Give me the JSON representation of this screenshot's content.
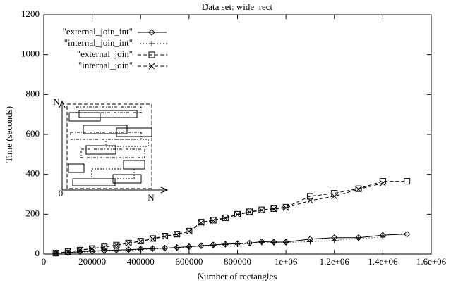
{
  "chart_data": {
    "type": "line",
    "title": "Data set: wide_rect",
    "x_label": "Number of rectangles",
    "y_label": "Time (seconds)",
    "xlim": [
      0,
      1600000
    ],
    "ylim": [
      0,
      1200
    ],
    "xticks": [
      0,
      200000,
      400000,
      600000,
      800000,
      {
        "value": 1000000,
        "label": "1e+06"
      },
      {
        "value": 1200000,
        "label": "1.2e+06"
      },
      {
        "value": 1400000,
        "label": "1.4e+06"
      },
      {
        "value": 1600000,
        "label": "1.6e+06"
      }
    ],
    "yticks": [
      0,
      200,
      400,
      600,
      800,
      1000,
      1200
    ],
    "legend": "top-left",
    "series": [
      {
        "name": "\"external_join_int\"",
        "color": "#000000",
        "marker": "diamond",
        "dash": "solid",
        "x": [
          50000,
          100000,
          150000,
          200000,
          250000,
          300000,
          350000,
          400000,
          450000,
          500000,
          550000,
          600000,
          650000,
          700000,
          750000,
          800000,
          850000,
          900000,
          950000,
          1000000,
          1100000,
          1200000,
          1300000,
          1400000,
          1500000
        ],
        "values": [
          3,
          8,
          12,
          15,
          18,
          20,
          22,
          25,
          28,
          30,
          33,
          37,
          42,
          46,
          50,
          52,
          55,
          62,
          60,
          60,
          75,
          82,
          82,
          95,
          100
        ]
      },
      {
        "name": "\"internal_join_int\"",
        "color": "#000000",
        "marker": "plus",
        "dash": "dotted",
        "x": [
          50000,
          100000,
          150000,
          200000,
          250000,
          300000,
          350000,
          400000,
          450000,
          500000,
          550000,
          600000,
          650000,
          700000,
          750000,
          800000,
          850000,
          900000,
          950000,
          1000000,
          1100000,
          1200000,
          1300000,
          1400000
        ],
        "values": [
          2,
          6,
          10,
          13,
          16,
          18,
          20,
          23,
          26,
          28,
          31,
          35,
          40,
          44,
          47,
          50,
          53,
          58,
          57,
          58,
          62,
          68,
          78,
          85
        ]
      },
      {
        "name": "\"external_join\"",
        "color": "#000000",
        "marker": "square",
        "dash": "dashed",
        "x": [
          50000,
          100000,
          150000,
          200000,
          250000,
          300000,
          350000,
          400000,
          450000,
          500000,
          550000,
          600000,
          650000,
          700000,
          750000,
          800000,
          850000,
          900000,
          950000,
          1000000,
          1100000,
          1200000,
          1300000,
          1400000,
          1500000
        ],
        "values": [
          5,
          12,
          20,
          28,
          36,
          45,
          55,
          65,
          78,
          90,
          100,
          115,
          160,
          170,
          182,
          200,
          212,
          222,
          228,
          235,
          290,
          305,
          328,
          365,
          365
        ]
      },
      {
        "name": "\"internal_join\"",
        "color": "#000000",
        "marker": "cross",
        "dash": "dashed",
        "x": [
          50000,
          100000,
          150000,
          200000,
          250000,
          300000,
          350000,
          400000,
          450000,
          500000,
          550000,
          600000,
          650000,
          700000,
          750000,
          800000,
          850000,
          900000,
          950000,
          1000000,
          1100000,
          1200000,
          1300000,
          1400000
        ],
        "values": [
          4,
          11,
          19,
          27,
          35,
          44,
          54,
          64,
          76,
          88,
          98,
          113,
          157,
          168,
          180,
          198,
          210,
          220,
          226,
          232,
          268,
          290,
          325,
          355
        ]
      }
    ],
    "inset": {
      "y_label": "N",
      "origin": "0",
      "x_label": "N"
    }
  }
}
